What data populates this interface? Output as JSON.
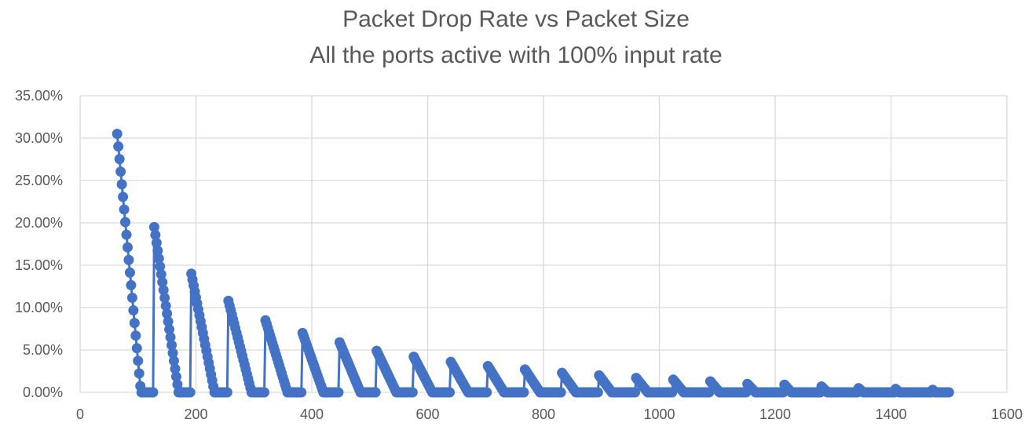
{
  "chart_data": {
    "type": "line",
    "title": "Packet Drop Rate vs Packet Size",
    "subtitle": "All the ports active with 100% input rate",
    "xlabel": "",
    "ylabel": "",
    "xlim": [
      0,
      1600
    ],
    "ylim": [
      0,
      0.35
    ],
    "x_ticks": [
      0,
      200,
      400,
      600,
      800,
      1000,
      1200,
      1400,
      1600
    ],
    "x_tick_labels": [
      "0",
      "200",
      "400",
      "600",
      "800",
      "1000",
      "1200",
      "1400",
      "1600"
    ],
    "y_ticks": [
      0,
      0.05,
      0.1,
      0.15,
      0.2,
      0.25,
      0.3,
      0.35
    ],
    "y_tick_labels": [
      "0.00%",
      "5.00%",
      "10.00%",
      "15.00%",
      "20.00%",
      "25.00%",
      "30.00%",
      "35.00%"
    ],
    "grid": true,
    "legend": "none",
    "series_color": "#4472C4",
    "series": [
      {
        "segments": [
          {
            "start": 64,
            "peak": 0.305,
            "end": 105
          },
          {
            "start": 128,
            "peak": 0.195,
            "end": 170
          },
          {
            "start": 192,
            "peak": 0.14,
            "end": 232
          },
          {
            "start": 256,
            "peak": 0.108,
            "end": 296
          },
          {
            "start": 320,
            "peak": 0.085,
            "end": 358
          },
          {
            "start": 384,
            "peak": 0.07,
            "end": 420
          },
          {
            "start": 448,
            "peak": 0.059,
            "end": 484
          },
          {
            "start": 512,
            "peak": 0.049,
            "end": 546
          },
          {
            "start": 576,
            "peak": 0.042,
            "end": 608
          },
          {
            "start": 640,
            "peak": 0.036,
            "end": 670
          },
          {
            "start": 704,
            "peak": 0.031,
            "end": 732
          },
          {
            "start": 768,
            "peak": 0.027,
            "end": 794
          },
          {
            "start": 832,
            "peak": 0.023,
            "end": 856
          },
          {
            "start": 896,
            "peak": 0.02,
            "end": 918
          },
          {
            "start": 960,
            "peak": 0.017,
            "end": 980
          },
          {
            "start": 1024,
            "peak": 0.015,
            "end": 1042
          },
          {
            "start": 1088,
            "peak": 0.013,
            "end": 1104
          },
          {
            "start": 1152,
            "peak": 0.01,
            "end": 1166
          },
          {
            "start": 1216,
            "peak": 0.009,
            "end": 1228
          },
          {
            "start": 1280,
            "peak": 0.007,
            "end": 1290
          },
          {
            "start": 1344,
            "peak": 0.005,
            "end": 1352
          },
          {
            "start": 1408,
            "peak": 0.004,
            "end": 1414
          },
          {
            "start": 1472,
            "peak": 0.003,
            "end": 1476
          }
        ],
        "x_start": 64,
        "x_end": 1500,
        "x_step": 2
      }
    ]
  }
}
